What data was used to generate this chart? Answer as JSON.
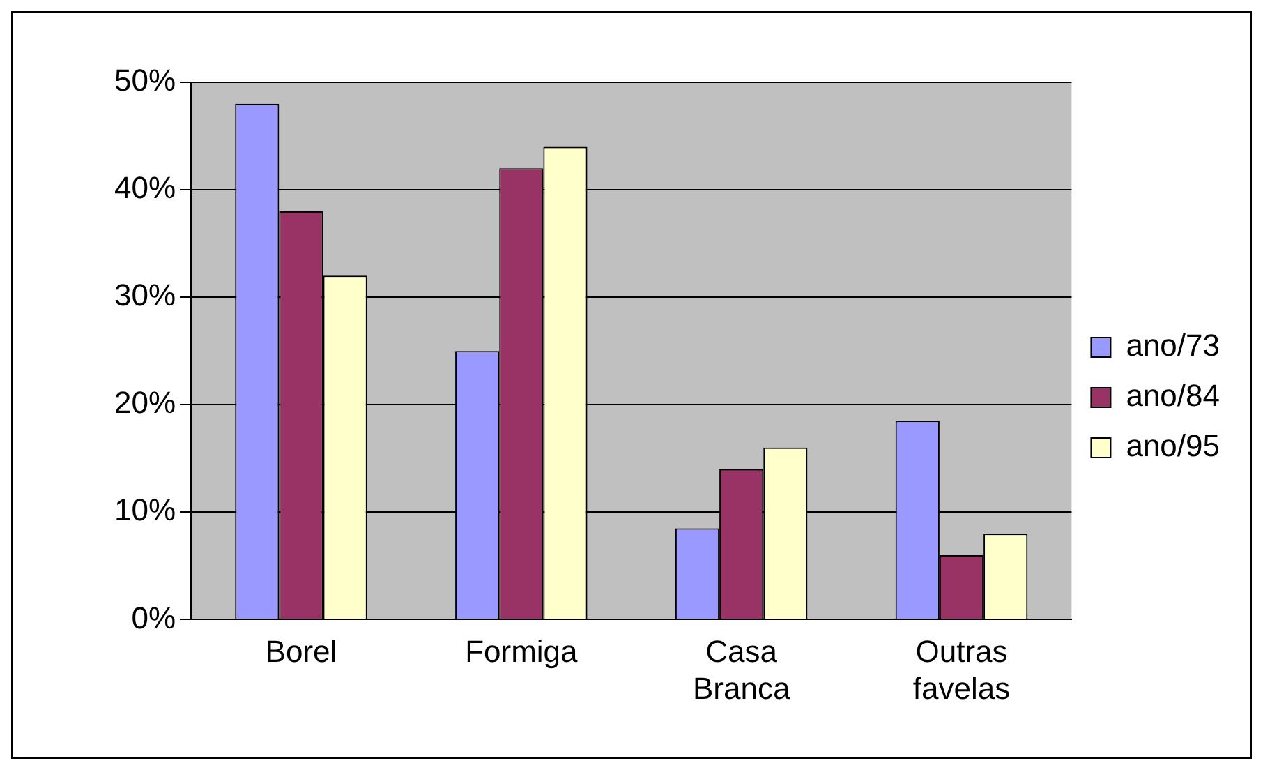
{
  "chart_data": {
    "type": "bar",
    "categories": [
      "Borel",
      "Formiga",
      "Casa Branca",
      "Outras favelas"
    ],
    "series": [
      {
        "name": "ano/73",
        "color": "#9999ff",
        "values": [
          48,
          25,
          8.5,
          18.5
        ]
      },
      {
        "name": "ano/84",
        "color": "#993366",
        "values": [
          38,
          42,
          14,
          6
        ]
      },
      {
        "name": "ano/95",
        "color": "#ffffcc",
        "values": [
          32,
          44,
          16,
          8
        ]
      }
    ],
    "ylim": [
      0,
      50
    ],
    "yticks": [
      {
        "value": 0,
        "label": "0%"
      },
      {
        "value": 10,
        "label": "10%"
      },
      {
        "value": 20,
        "label": "20%"
      },
      {
        "value": 30,
        "label": "30%"
      },
      {
        "value": 40,
        "label": "40%"
      },
      {
        "value": 50,
        "label": "50%"
      }
    ],
    "grid": "y",
    "legend": "right"
  }
}
